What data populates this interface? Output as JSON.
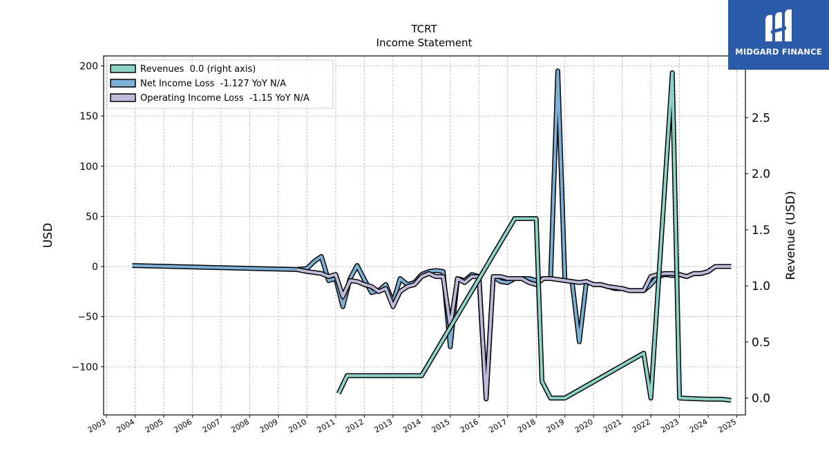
{
  "brand": {
    "name": "MIDGARD FINANCE",
    "logo_icon": "midgard-m-logo-icon",
    "colors": {
      "background": "#2a5aa8",
      "text": "#ffffff"
    }
  },
  "chart_data": {
    "type": "line",
    "title": "TCRT",
    "subtitle": "Income Statement",
    "ylabel_left": "USD",
    "ylabel_right": "Revenue (USD)",
    "xlim": [
      2002.9,
      2025.3
    ],
    "ylim_left": [
      -148,
      210
    ],
    "ylim_right": [
      -0.15,
      3.05
    ],
    "x_ticks": [
      "2003",
      "2004",
      "2005",
      "2006",
      "2007",
      "2008",
      "2009",
      "2010",
      "2011",
      "2012",
      "2013",
      "2014",
      "2015",
      "2016",
      "2017",
      "2018",
      "2019",
      "2020",
      "2021",
      "2022",
      "2023",
      "2024",
      "2025"
    ],
    "y_ticks_left": [
      -100,
      -50,
      0,
      50,
      100,
      150,
      200
    ],
    "y_tick_labels_left": [
      "−100",
      "−50",
      "0",
      "50",
      "100",
      "150",
      "200"
    ],
    "y_ticks_right": [
      0.0,
      0.5,
      1.0,
      1.5,
      2.0,
      2.5
    ],
    "y_tick_labels_right": [
      "0.0",
      "0.5",
      "1.0",
      "1.5",
      "2.0",
      "2.5"
    ],
    "grid": true,
    "legend_position": "top-left",
    "series": [
      {
        "name": "Revenues  0.0 (right axis)",
        "axis": "right",
        "color": "#8dd3c7",
        "x": [
          2011.1,
          2011.4,
          2013.2,
          2014.0,
          2017.25,
          2018.0,
          2018.2,
          2018.5,
          2019.0,
          2021.75,
          2022.0,
          2022.75,
          2023.0,
          2024.0,
          2024.5,
          2024.8
        ],
        "y": [
          0.04,
          0.2,
          0.2,
          0.2,
          1.6,
          1.6,
          0.15,
          0.0,
          0.0,
          0.4,
          0.0,
          2.9,
          0.0,
          -0.01,
          -0.01,
          -0.02
        ]
      },
      {
        "name": "Net Income Loss  -1.127 YoY N/A",
        "axis": "left",
        "color": "#7bafd4",
        "x": [
          2003.9,
          2009.65,
          2010.0,
          2010.25,
          2010.5,
          2010.75,
          2011.0,
          2011.25,
          2011.5,
          2011.75,
          2012.0,
          2012.25,
          2012.5,
          2012.75,
          2013.0,
          2013.25,
          2013.5,
          2013.75,
          2014.0,
          2014.25,
          2014.5,
          2014.75,
          2015.0,
          2015.25,
          2015.5,
          2015.75,
          2016.0,
          2016.25,
          2016.5,
          2016.75,
          2017.0,
          2017.25,
          2017.5,
          2017.75,
          2018.0,
          2018.25,
          2018.5,
          2018.75,
          2019.0,
          2019.25,
          2019.5,
          2019.75,
          2020.0,
          2020.25,
          2020.5,
          2020.75,
          2021.0,
          2021.25,
          2021.5,
          2021.75,
          2022.0,
          2022.25,
          2022.5,
          2022.75,
          2023.0,
          2023.25,
          2023.5,
          2023.75,
          2024.0,
          2024.25,
          2024.5,
          2024.8
        ],
        "y": [
          1,
          -3,
          -2,
          5,
          10,
          -14,
          -12,
          -40,
          -12,
          1,
          -13,
          -26,
          -24,
          -18,
          -36,
          -12,
          -18,
          -16,
          -8,
          -5,
          -4,
          -5,
          -80,
          -12,
          -14,
          -8,
          -10,
          -132,
          -10,
          -15,
          -16,
          -12,
          -12,
          -12,
          -14,
          -12,
          -12,
          195,
          -14,
          -15,
          -75,
          -15,
          -18,
          -18,
          -20,
          -22,
          -22,
          -24,
          -24,
          -24,
          -18,
          -10,
          -8,
          -9,
          -8,
          -10,
          -7,
          -7,
          -5,
          0,
          0,
          0
        ]
      },
      {
        "name": "Operating Income Loss  -1.15 YoY N/A",
        "axis": "left",
        "color": "#bebada",
        "x": [
          2009.65,
          2010.0,
          2010.25,
          2010.5,
          2010.75,
          2011.0,
          2011.25,
          2011.5,
          2011.75,
          2012.0,
          2012.25,
          2012.5,
          2012.75,
          2013.0,
          2013.25,
          2013.5,
          2013.75,
          2014.0,
          2014.25,
          2014.5,
          2014.75,
          2015.0,
          2015.25,
          2015.5,
          2015.75,
          2016.0,
          2016.25,
          2016.5,
          2016.75,
          2017.0,
          2017.25,
          2017.5,
          2017.75,
          2018.0,
          2018.25,
          2018.5,
          2018.75,
          2019.0,
          2019.25,
          2019.5,
          2019.75,
          2020.0,
          2020.25,
          2020.5,
          2020.75,
          2021.0,
          2021.25,
          2021.5,
          2021.75,
          2022.0,
          2022.25,
          2022.5,
          2022.75,
          2023.0,
          2023.25,
          2023.5,
          2023.75,
          2024.0,
          2024.25,
          2024.5,
          2024.8
        ],
        "y": [
          -3,
          -5,
          -6,
          -7,
          -10,
          -8,
          -30,
          -14,
          -15,
          -18,
          -20,
          -25,
          -22,
          -40,
          -25,
          -20,
          -18,
          -10,
          -7,
          -10,
          -10,
          -60,
          -12,
          -16,
          -10,
          -10,
          -132,
          -10,
          -10,
          -12,
          -12,
          -12,
          -16,
          -18,
          -12,
          -12,
          -13,
          -14,
          -15,
          -16,
          -15,
          -18,
          -18,
          -20,
          -21,
          -22,
          -24,
          -24,
          -24,
          -10,
          -8,
          -7,
          -7,
          -8,
          -10,
          -7,
          -7,
          -5,
          0,
          0,
          0
        ]
      }
    ]
  }
}
